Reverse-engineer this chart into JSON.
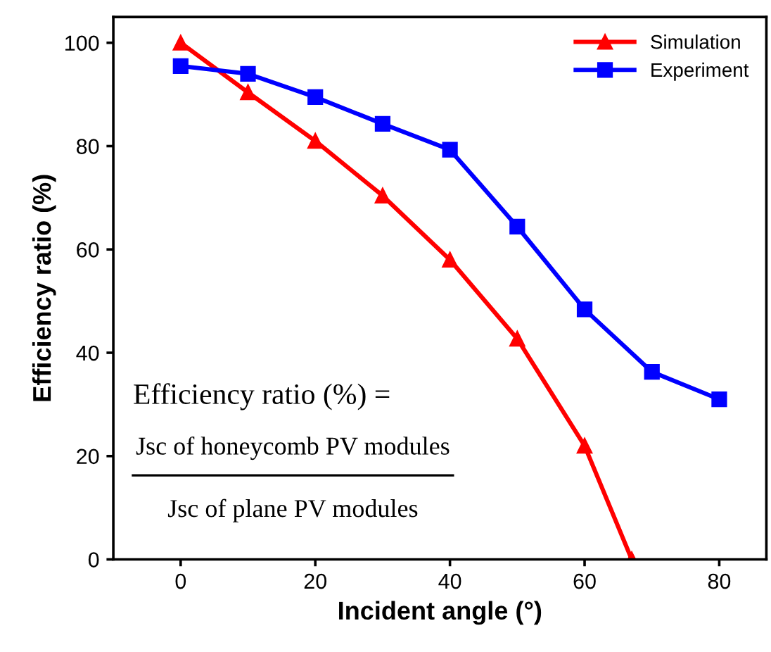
{
  "chart_data": {
    "type": "line",
    "xlabel": "Incident angle (°)",
    "ylabel": "Efficiency ratio (%)",
    "xlim": [
      -10,
      87
    ],
    "ylim": [
      0,
      105
    ],
    "xticks": [
      0,
      20,
      40,
      60,
      80
    ],
    "yticks": [
      0,
      20,
      40,
      60,
      80,
      100
    ],
    "grid": false,
    "legend": "top right",
    "line_style": "solid",
    "series": [
      {
        "name": "Simulation",
        "color": "#ff0000",
        "marker": "triangle",
        "x": [
          0,
          10,
          20,
          30,
          40,
          50,
          60,
          67
        ],
        "values": [
          100,
          90.4,
          81,
          70.4,
          58,
          42.7,
          22,
          0
        ]
      },
      {
        "name": "Experiment",
        "color": "#0000ff",
        "marker": "square",
        "x": [
          0,
          10,
          20,
          30,
          40,
          50,
          60,
          70,
          80
        ],
        "values": [
          95.5,
          94,
          89.5,
          84.3,
          79.3,
          64.4,
          48.4,
          36.3,
          31
        ]
      }
    ],
    "annotations": [
      "Efficiency ratio (%) =",
      "Jsc of honeycomb PV modules",
      "Jsc of plane PV modules"
    ]
  }
}
